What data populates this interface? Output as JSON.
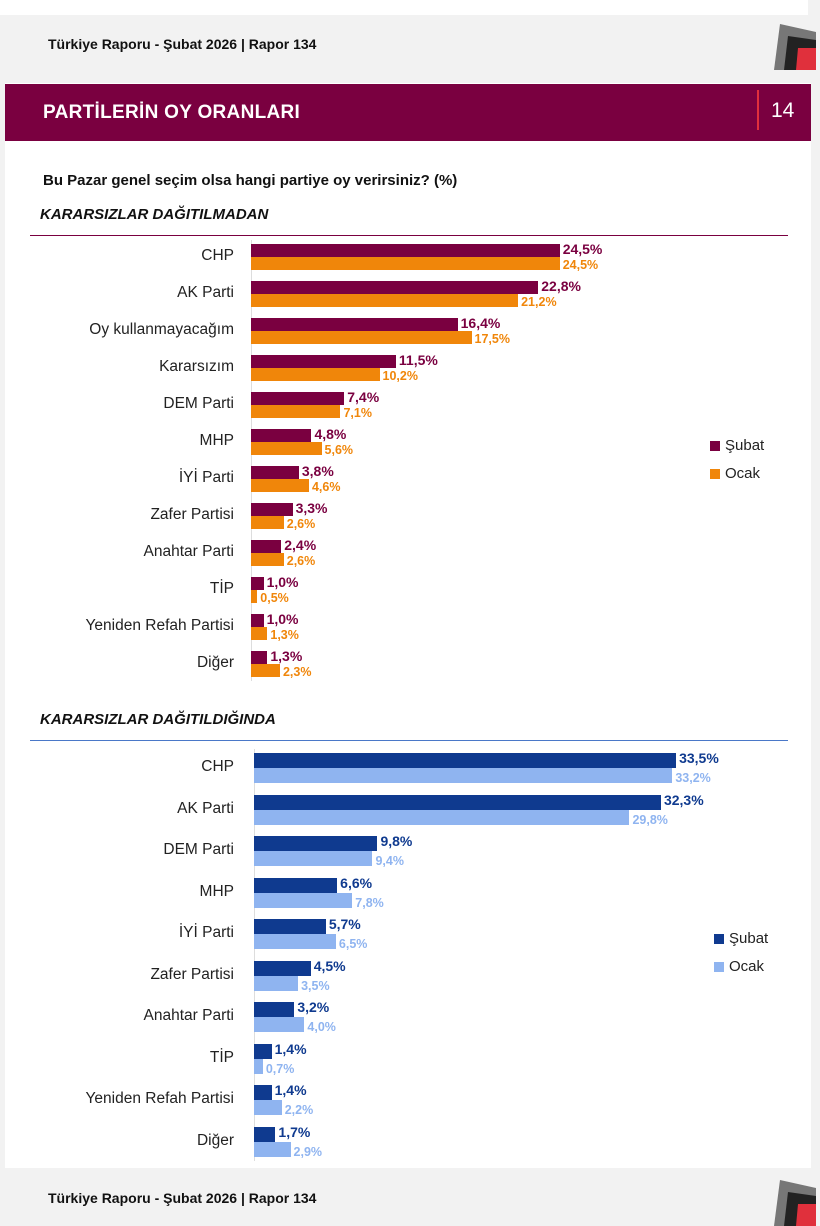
{
  "header": {
    "report": "Türkiye Raporu - Şubat 2026 | Rapor 134"
  },
  "footer": {
    "report": "Türkiye Raporu - Şubat 2026 | Rapor 134"
  },
  "banner": {
    "title": "PARTİLERİN OY ORANLARI",
    "page_number": "14"
  },
  "question": "Bu Pazar genel seçim olsa hangi partiye oy verirsiniz? (%)",
  "colors": {
    "brand": "#7a0040",
    "subat_1": "#7a0040",
    "ocak_1": "#f0860a",
    "subat_2": "#0f3a8f",
    "ocak_2": "#8fb4f0",
    "accent": "#e0303c"
  },
  "chart_data": [
    {
      "type": "bar",
      "orientation": "horizontal",
      "title": "KARARSIZLAR DAĞITILMADAN",
      "categories": [
        "CHP",
        "AK Parti",
        "Oy kullanmayacağım",
        "Kararsızım",
        "DEM Parti",
        "MHP",
        "İYİ Parti",
        "Zafer Partisi",
        "Anahtar Parti",
        "TİP",
        "Yeniden Refah Partisi",
        "Diğer"
      ],
      "series": [
        {
          "name": "Şubat",
          "values": [
            24.5,
            22.8,
            16.4,
            11.5,
            7.4,
            4.8,
            3.8,
            3.3,
            2.4,
            1.0,
            1.0,
            1.3
          ],
          "labels": [
            "24,5%",
            "22,8%",
            "16,4%",
            "11,5%",
            "7,4%",
            "4,8%",
            "3,8%",
            "3,3%",
            "2,4%",
            "1,0%",
            "1,0%",
            "1,3%"
          ]
        },
        {
          "name": "Ocak",
          "values": [
            24.5,
            21.2,
            17.5,
            10.2,
            7.1,
            5.6,
            4.6,
            2.6,
            2.6,
            0.5,
            1.3,
            2.3
          ],
          "labels": [
            "24,5%",
            "21,2%",
            "17,5%",
            "10,2%",
            "7,1%",
            "5,6%",
            "4,6%",
            "2,6%",
            "2,6%",
            "0,5%",
            "1,3%",
            "2,3%"
          ]
        }
      ],
      "legend": "right"
    },
    {
      "type": "bar",
      "orientation": "horizontal",
      "title": "KARARSIZLAR DAĞITILDIĞINDA",
      "categories": [
        "CHP",
        "AK Parti",
        "DEM Parti",
        "MHP",
        "İYİ Parti",
        "Zafer Partisi",
        "Anahtar Parti",
        "TİP",
        "Yeniden Refah Partisi",
        "Diğer"
      ],
      "series": [
        {
          "name": "Şubat",
          "values": [
            33.5,
            32.3,
            9.8,
            6.6,
            5.7,
            4.5,
            3.2,
            1.4,
            1.4,
            1.7
          ],
          "labels": [
            "33,5%",
            "32,3%",
            "9,8%",
            "6,6%",
            "5,7%",
            "4,5%",
            "3,2%",
            "1,4%",
            "1,4%",
            "1,7%"
          ]
        },
        {
          "name": "Ocak",
          "values": [
            33.2,
            29.8,
            9.4,
            7.8,
            6.5,
            3.5,
            4.0,
            0.7,
            2.2,
            2.9
          ],
          "labels": [
            "33,2%",
            "29,8%",
            "9,4%",
            "7,8%",
            "6,5%",
            "3,5%",
            "4,0%",
            "0,7%",
            "2,2%",
            "2,9%"
          ]
        }
      ],
      "legend": "right"
    }
  ]
}
